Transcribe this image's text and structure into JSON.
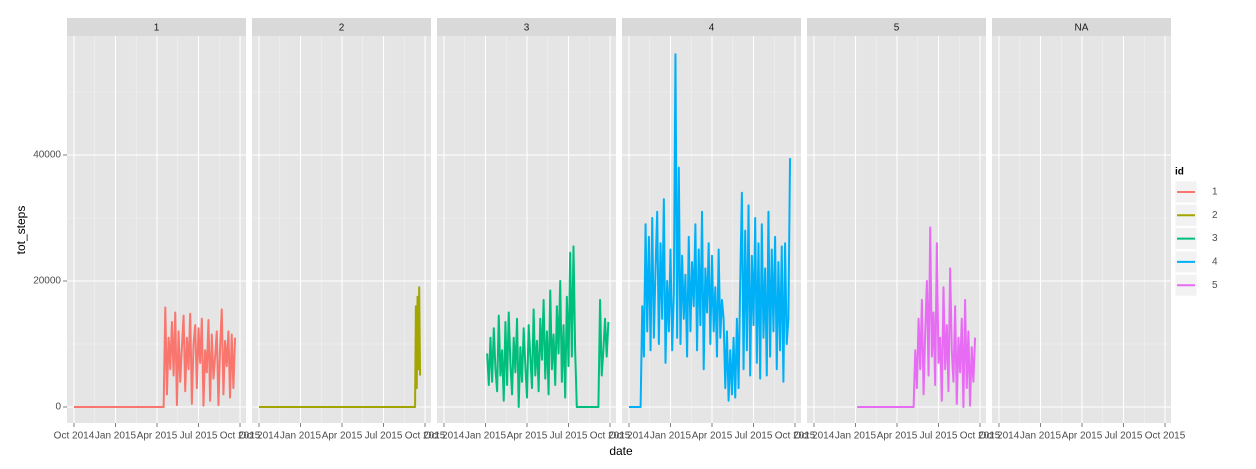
{
  "chart_data": {
    "type": "line",
    "facets": [
      "1",
      "2",
      "3",
      "4",
      "5",
      "NA"
    ],
    "x_label": "date",
    "y_label": "tot_steps",
    "legend_title": "id",
    "xlim": [
      2014.708,
      2015.786
    ],
    "ylim": [
      -2540,
      58890
    ],
    "xticks": [
      {
        "value": 2014.75,
        "label": "Oct 2014"
      },
      {
        "value": 2015.0,
        "label": "Jan 2015"
      },
      {
        "value": 2015.25,
        "label": "Apr 2015"
      },
      {
        "value": 2015.5,
        "label": "Jul 2015"
      },
      {
        "value": 2015.75,
        "label": "Oct 2015"
      }
    ],
    "x_minor_ticks": [
      2014.875,
      2015.125,
      2015.375,
      2015.625
    ],
    "yticks": [
      0,
      20000,
      40000
    ],
    "y_minor_ticks": [
      10000,
      30000,
      50000
    ],
    "grid": true,
    "series": [
      {
        "name": "1",
        "color": "#F8766D",
        "x": [
          2014.75,
          2015.29,
          2015.3,
          2015.31,
          2015.32,
          2015.33,
          2015.34,
          2015.35,
          2015.36,
          2015.37,
          2015.38,
          2015.39,
          2015.4,
          2015.41,
          2015.42,
          2015.43,
          2015.44,
          2015.45,
          2015.46,
          2015.47,
          2015.48,
          2015.49,
          2015.5,
          2015.51,
          2015.52,
          2015.53,
          2015.54,
          2015.55,
          2015.56,
          2015.57,
          2015.58,
          2015.59,
          2015.6,
          2015.61,
          2015.62,
          2015.63,
          2015.64,
          2015.65,
          2015.66,
          2015.67,
          2015.68,
          2015.69,
          2015.7,
          2015.71,
          2015.72
        ],
        "values": [
          0,
          0,
          15800,
          2000,
          11000,
          6000,
          13500,
          5000,
          15000,
          300,
          12000,
          4000,
          9500,
          14500,
          2500,
          11000,
          6000,
          14800,
          500,
          10000,
          13000,
          3000,
          12500,
          7000,
          14000,
          200,
          9000,
          5500,
          13800,
          1000,
          11500,
          4500,
          8000,
          12000,
          300,
          9500,
          15500,
          2000,
          10500,
          6500,
          12000,
          1500,
          11500,
          3000,
          11000
        ]
      },
      {
        "name": "2",
        "color": "#A3A500",
        "x": [
          2014.75,
          2015.69,
          2015.695,
          2015.7,
          2015.705,
          2015.71,
          2015.715,
          2015.72
        ],
        "values": [
          0,
          0,
          16000,
          3000,
          17500,
          6000,
          19000,
          5000
        ]
      },
      {
        "name": "3",
        "color": "#00BF7D",
        "x": [
          2015.01,
          2015.02,
          2015.03,
          2015.04,
          2015.05,
          2015.06,
          2015.07,
          2015.08,
          2015.09,
          2015.1,
          2015.11,
          2015.12,
          2015.13,
          2015.14,
          2015.15,
          2015.16,
          2015.17,
          2015.18,
          2015.19,
          2015.2,
          2015.21,
          2015.22,
          2015.23,
          2015.24,
          2015.25,
          2015.26,
          2015.27,
          2015.28,
          2015.29,
          2015.3,
          2015.31,
          2015.32,
          2015.33,
          2015.34,
          2015.35,
          2015.36,
          2015.37,
          2015.38,
          2015.39,
          2015.4,
          2015.41,
          2015.42,
          2015.43,
          2015.44,
          2015.45,
          2015.46,
          2015.47,
          2015.48,
          2015.49,
          2015.5,
          2015.51,
          2015.52,
          2015.53,
          2015.54,
          2015.55,
          2015.68,
          2015.69,
          2015.7,
          2015.71,
          2015.72,
          2015.73,
          2015.74
        ],
        "values": [
          8500,
          3500,
          11000,
          4000,
          12500,
          6000,
          2500,
          14500,
          5000,
          9000,
          1000,
          13500,
          3500,
          15000,
          7000,
          2000,
          11000,
          5500,
          14000,
          0,
          9500,
          4000,
          12500,
          6500,
          1500,
          13000,
          8000,
          3000,
          15500,
          5000,
          10500,
          2500,
          14000,
          7500,
          17000,
          4500,
          12000,
          2000,
          18500,
          6000,
          11500,
          3500,
          16000,
          8500,
          20000,
          4000,
          13000,
          1500,
          17500,
          6500,
          24500,
          8000,
          25500,
          9000,
          0,
          0,
          17000,
          5000,
          9000,
          14000,
          8000,
          13500
        ]
      },
      {
        "name": "4",
        "color": "#00B0F6",
        "x": [
          2014.75,
          2014.82,
          2014.83,
          2014.84,
          2014.85,
          2014.86,
          2014.87,
          2014.88,
          2014.89,
          2014.9,
          2014.91,
          2014.92,
          2014.93,
          2014.94,
          2014.95,
          2014.96,
          2014.97,
          2014.98,
          2014.99,
          2015.0,
          2015.01,
          2015.02,
          2015.03,
          2015.04,
          2015.05,
          2015.06,
          2015.07,
          2015.08,
          2015.09,
          2015.1,
          2015.11,
          2015.12,
          2015.13,
          2015.14,
          2015.15,
          2015.16,
          2015.17,
          2015.18,
          2015.19,
          2015.2,
          2015.21,
          2015.22,
          2015.23,
          2015.24,
          2015.25,
          2015.26,
          2015.27,
          2015.28,
          2015.29,
          2015.3,
          2015.31,
          2015.32,
          2015.33,
          2015.34,
          2015.35,
          2015.36,
          2015.37,
          2015.38,
          2015.39,
          2015.4,
          2015.41,
          2015.42,
          2015.43,
          2015.44,
          2015.45,
          2015.46,
          2015.47,
          2015.48,
          2015.49,
          2015.5,
          2015.51,
          2015.52,
          2015.53,
          2015.54,
          2015.55,
          2015.56,
          2015.57,
          2015.58,
          2015.59,
          2015.6,
          2015.61,
          2015.62,
          2015.63,
          2015.64,
          2015.65,
          2015.66,
          2015.67,
          2015.68,
          2015.69,
          2015.7,
          2015.71,
          2015.72
        ],
        "values": [
          0,
          0,
          16000,
          8000,
          29000,
          12000,
          27000,
          9000,
          30000,
          11000,
          22000,
          31000,
          10000,
          26000,
          14000,
          33000,
          7000,
          20000,
          12000,
          25000,
          9000,
          18000,
          56000,
          11000,
          38000,
          10000,
          24000,
          14000,
          21000,
          8000,
          27000,
          12000,
          23000,
          16000,
          29000,
          9000,
          25000,
          13000,
          31000,
          6000,
          22000,
          15000,
          26000,
          10000,
          24000,
          12000,
          19000,
          8000,
          25000,
          11000,
          17000,
          14000,
          3000,
          12000,
          1000,
          9000,
          2000,
          11000,
          1500,
          14000,
          3000,
          20000,
          34000,
          6000,
          28000,
          9000,
          32000,
          5000,
          24000,
          13000,
          30000,
          7000,
          26000,
          4500,
          29000,
          11000,
          22000,
          5000,
          31000,
          8000,
          25000,
          12000,
          27000,
          6000,
          23000,
          9000,
          25500,
          4000,
          26000,
          10000,
          14000,
          39500
        ]
      },
      {
        "name": "5",
        "color": "#E76BF3",
        "x": [
          2015.01,
          2015.35,
          2015.36,
          2015.37,
          2015.38,
          2015.39,
          2015.4,
          2015.41,
          2015.42,
          2015.43,
          2015.44,
          2015.45,
          2015.46,
          2015.47,
          2015.48,
          2015.49,
          2015.5,
          2015.51,
          2015.52,
          2015.53,
          2015.54,
          2015.55,
          2015.56,
          2015.57,
          2015.58,
          2015.59,
          2015.6,
          2015.61,
          2015.62,
          2015.63,
          2015.64,
          2015.65,
          2015.66,
          2015.67,
          2015.68,
          2015.69,
          2015.7,
          2015.71,
          2015.72
        ],
        "values": [
          0,
          0,
          9000,
          3000,
          14000,
          6000,
          17000,
          2000,
          12000,
          20000,
          5000,
          28500,
          8000,
          15000,
          3500,
          26000,
          7000,
          11000,
          1000,
          19000,
          6000,
          13000,
          2500,
          22000,
          9000,
          4000,
          16000,
          500,
          11000,
          5500,
          14000,
          0,
          17000,
          3000,
          12000,
          200,
          9500,
          4000,
          11000
        ]
      }
    ]
  }
}
